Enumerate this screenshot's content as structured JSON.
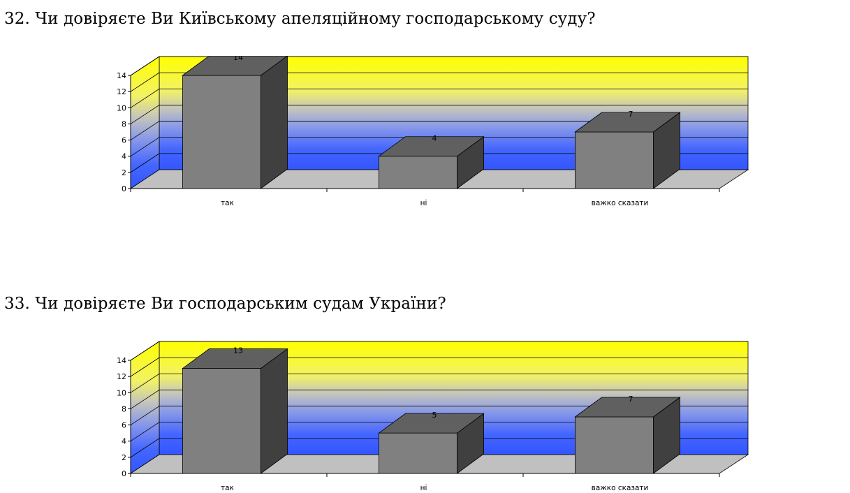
{
  "questions": [
    {
      "title": "32. Чи довіряєте Ви Київському апеляційному господарському суду?"
    },
    {
      "title": "33. Чи довіряєте Ви господарським судам України?"
    }
  ],
  "chart_data": [
    {
      "type": "bar",
      "title": "32. Чи довіряєте Ви Київському апеляційному господарському суду?",
      "categories": [
        "так",
        "ні",
        "важко сказати"
      ],
      "values": [
        14,
        4,
        7
      ],
      "ylim": [
        0,
        14
      ],
      "yticks": [
        0,
        2,
        4,
        6,
        8,
        10,
        12,
        14
      ],
      "grid": true,
      "legend": "none",
      "bar_color": "#808080",
      "style": "3d"
    },
    {
      "type": "bar",
      "title": "33. Чи довіряєте Ви господарським судам України?",
      "categories": [
        "так",
        "ні",
        "важко сказати"
      ],
      "values": [
        13,
        5,
        7
      ],
      "ylim": [
        0,
        14
      ],
      "yticks": [
        0,
        2,
        4,
        6,
        8,
        10,
        12,
        14
      ],
      "grid": true,
      "legend": "none",
      "bar_color": "#808080",
      "style": "3d"
    }
  ]
}
